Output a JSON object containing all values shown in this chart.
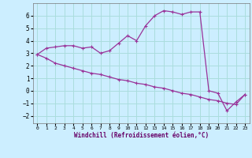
{
  "xlabel": "Windchill (Refroidissement éolien,°C)",
  "bg_color": "#cceeff",
  "line_color": "#993399",
  "grid_color": "#aadddd",
  "xlim": [
    -0.5,
    23.5
  ],
  "ylim": [
    -2.6,
    7.0
  ],
  "yticks": [
    -2,
    -1,
    0,
    1,
    2,
    3,
    4,
    5,
    6
  ],
  "xticks": [
    0,
    1,
    2,
    3,
    4,
    5,
    6,
    7,
    8,
    9,
    10,
    11,
    12,
    13,
    14,
    15,
    16,
    17,
    18,
    19,
    20,
    21,
    22,
    23
  ],
  "curve1_x": [
    0,
    1,
    2,
    3,
    4,
    5,
    6,
    7,
    8,
    9,
    10,
    11,
    12,
    13,
    14,
    15,
    16,
    17,
    18,
    19,
    20,
    21,
    22,
    23
  ],
  "curve1_y": [
    2.9,
    3.4,
    3.5,
    3.6,
    3.6,
    3.4,
    3.5,
    3.0,
    3.2,
    3.8,
    4.4,
    4.0,
    5.2,
    6.0,
    6.4,
    6.3,
    6.1,
    6.3,
    6.3,
    0.0,
    -0.2,
    -1.6,
    -0.9,
    -0.3
  ],
  "curve2_x": [
    0,
    1,
    2,
    3,
    4,
    5,
    6,
    7,
    8,
    9,
    10,
    11,
    12,
    13,
    14,
    15,
    16,
    17,
    18,
    19,
    20,
    21,
    22,
    23
  ],
  "curve2_y": [
    2.9,
    2.6,
    2.2,
    2.0,
    1.8,
    1.6,
    1.4,
    1.3,
    1.1,
    0.9,
    0.8,
    0.6,
    0.5,
    0.3,
    0.2,
    0.0,
    -0.2,
    -0.3,
    -0.5,
    -0.7,
    -0.8,
    -1.0,
    -1.1,
    -0.3
  ]
}
